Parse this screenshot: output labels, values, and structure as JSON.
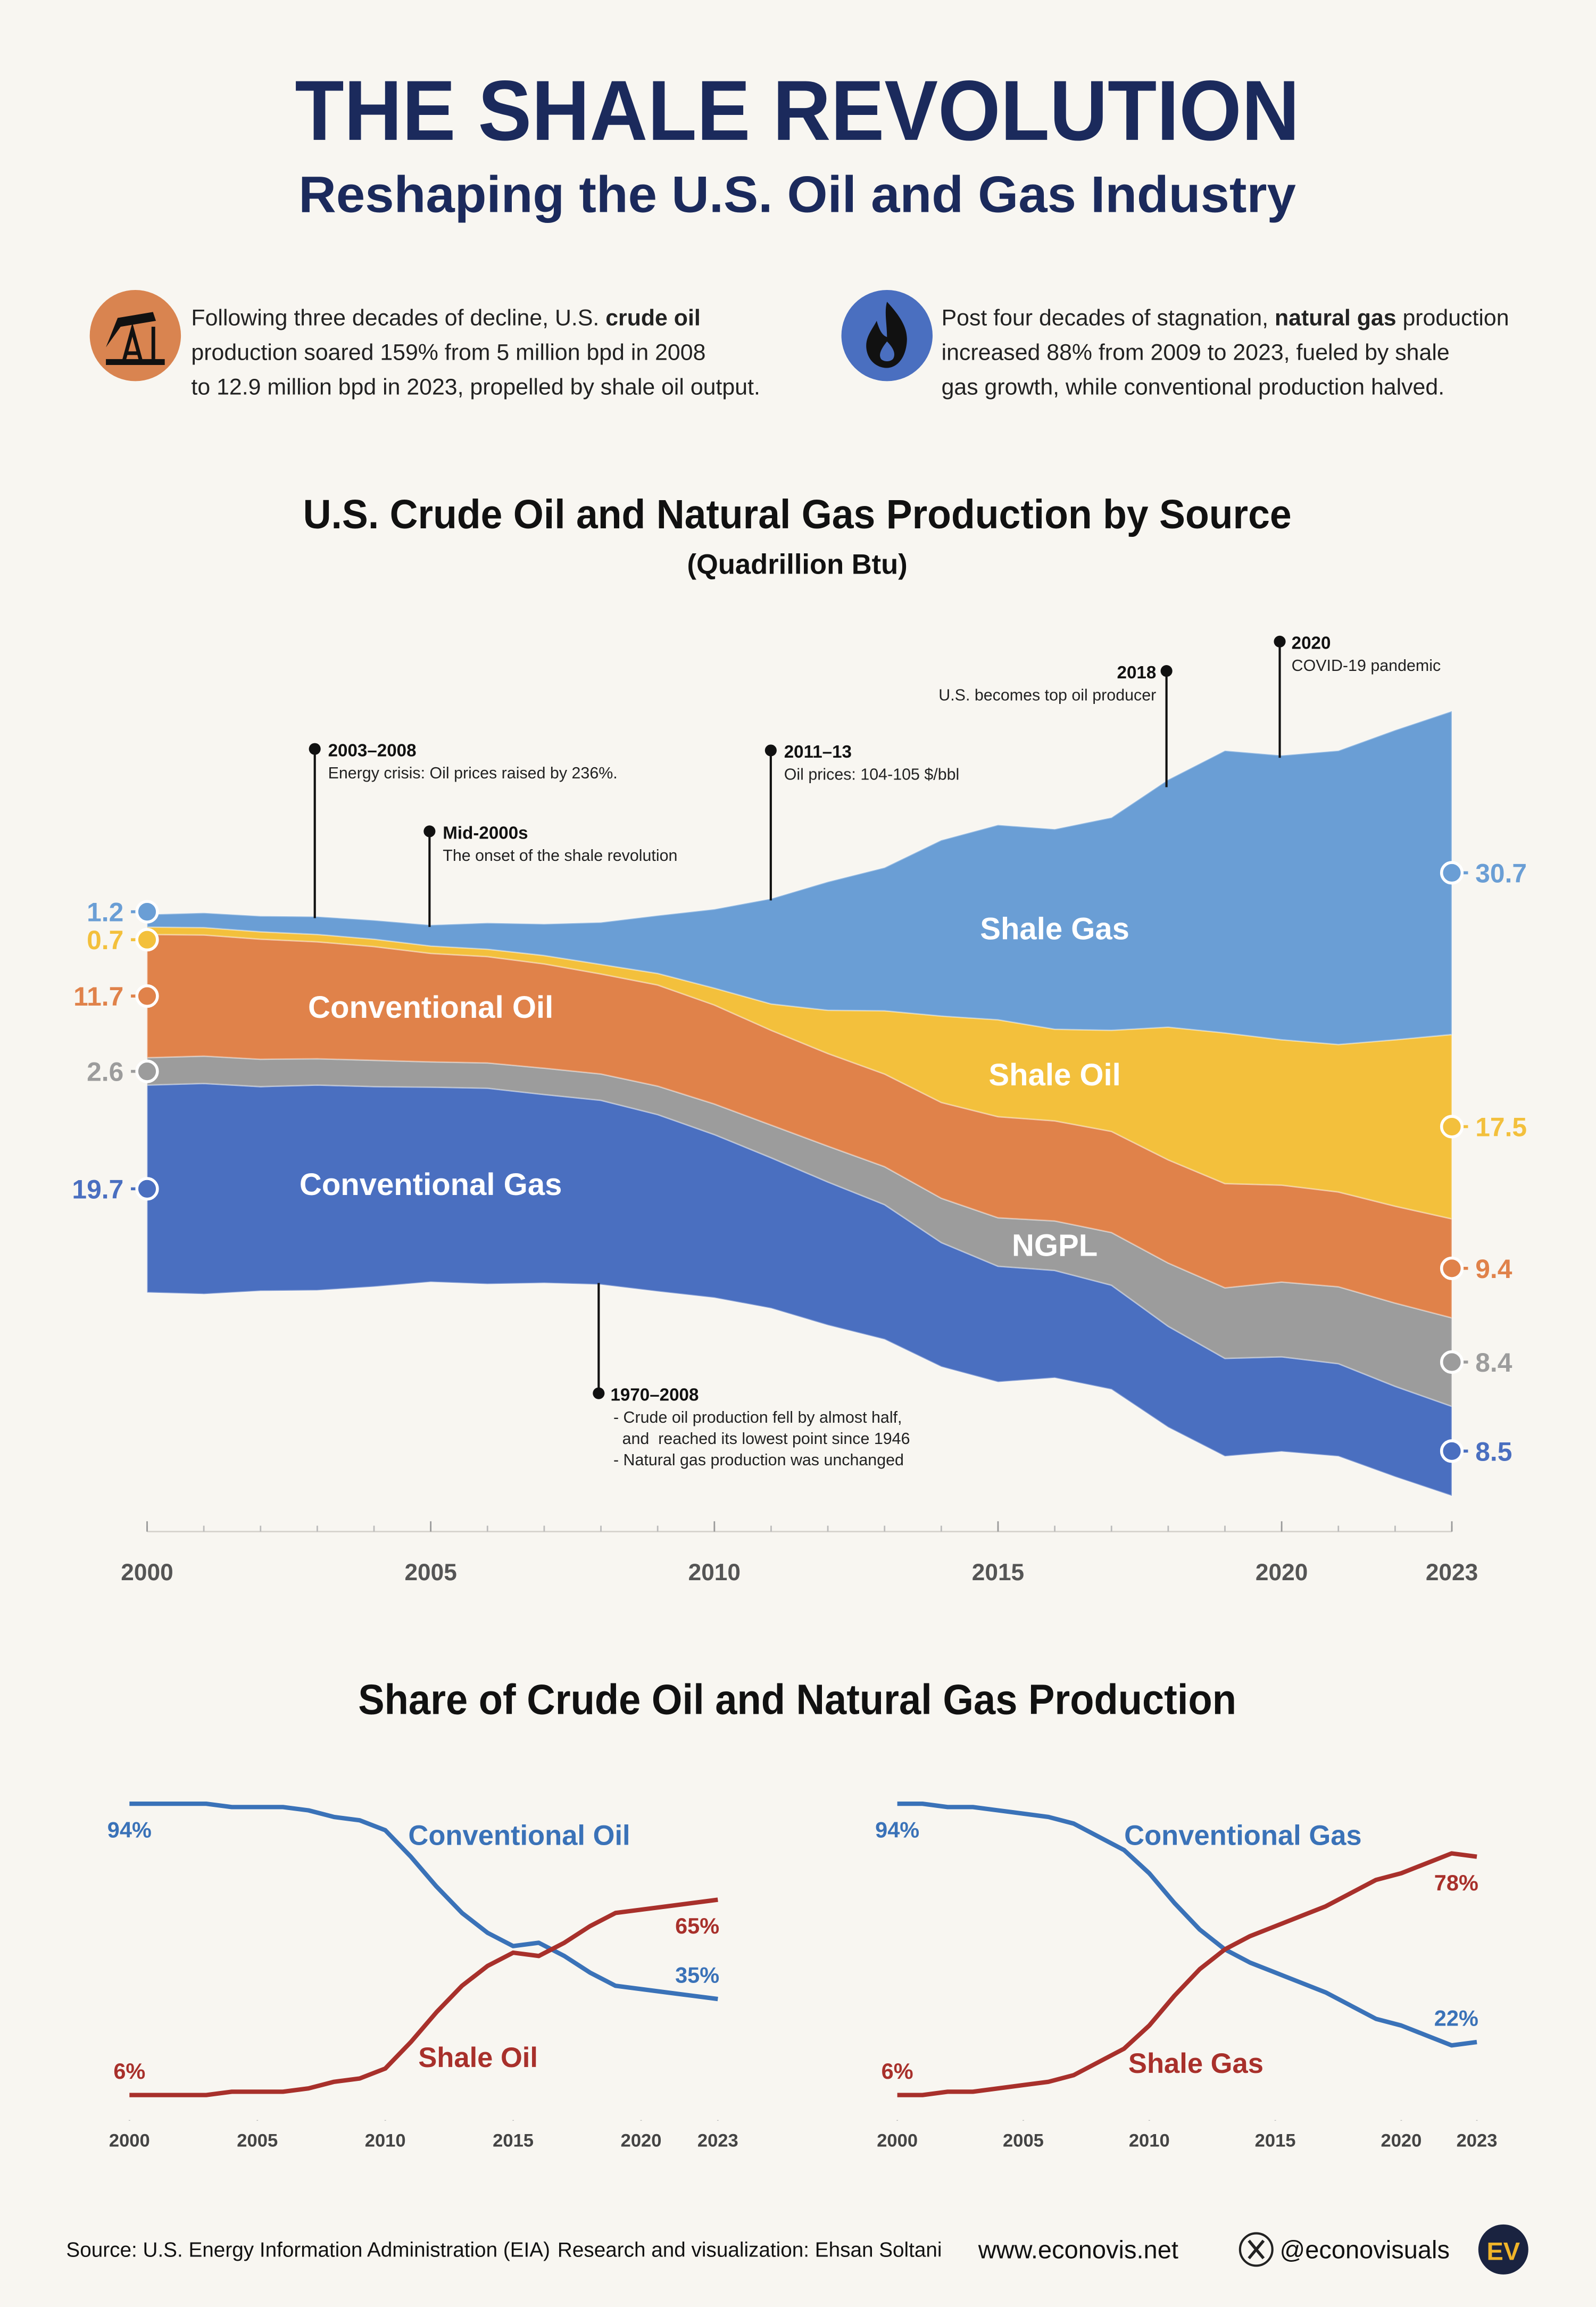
{
  "header": {
    "title": "THE SHALE REVOLUTION",
    "subtitle": "Reshaping the U.S. Oil and Gas Industry"
  },
  "intro": [
    {
      "lines": [
        [
          {
            "text": "Following three decades of decline, U.S. "
          },
          {
            "text": "crude oil",
            "bold": true
          }
        ],
        [
          {
            "text": "production soared 159% from 5 million bpd in 2008"
          }
        ],
        [
          {
            "text": "to 12.9 million bpd in 2023, propelled by shale oil output."
          }
        ]
      ]
    },
    {
      "lines": [
        [
          {
            "text": "Post four decades of stagnation, "
          },
          {
            "text": "natural gas",
            "bold": true
          },
          {
            "text": " production"
          }
        ],
        [
          {
            "text": "increased 88% from 2009 to 2023, fueled by shale"
          }
        ],
        [
          {
            "text": "gas growth, while conventional production halved."
          }
        ]
      ]
    }
  ],
  "chart_data": [
    {
      "type": "area",
      "title": "U.S. Crude Oil and Natural Gas Production by Source",
      "subtitle": "(Quadrillion Btu)",
      "x": [
        2000,
        2001,
        2002,
        2003,
        2004,
        2005,
        2006,
        2007,
        2008,
        2009,
        2010,
        2011,
        2012,
        2013,
        2014,
        2015,
        2016,
        2017,
        2018,
        2019,
        2020,
        2021,
        2022,
        2023
      ],
      "xlim": [
        2000,
        2023
      ],
      "xticks": [
        2000,
        2005,
        2010,
        2015,
        2020,
        2023
      ],
      "series": [
        {
          "name": "Conventional Gas",
          "color": "#4a6fc0",
          "values": [
            19.7,
            20.0,
            19.4,
            19.5,
            19.0,
            18.5,
            18.6,
            17.9,
            17.5,
            16.8,
            15.5,
            14.3,
            13.6,
            12.8,
            11.8,
            11.0,
            10.2,
            9.9,
            9.6,
            9.3,
            9.0,
            8.8,
            8.6,
            8.5
          ]
        },
        {
          "name": "NGPL",
          "color": "#9c9c9c",
          "values": [
            2.6,
            2.6,
            2.6,
            2.5,
            2.5,
            2.4,
            2.4,
            2.5,
            2.5,
            2.7,
            2.9,
            3.1,
            3.4,
            3.6,
            4.2,
            4.6,
            4.7,
            5.0,
            6.0,
            6.7,
            7.1,
            7.3,
            7.9,
            8.4
          ]
        },
        {
          "name": "Conventional Oil",
          "color": "#e0824a",
          "values": [
            11.7,
            11.5,
            11.4,
            11.1,
            10.8,
            10.3,
            10.1,
            9.9,
            9.5,
            9.6,
            9.4,
            9.0,
            8.8,
            8.8,
            9.1,
            9.6,
            9.5,
            9.6,
            9.8,
            9.9,
            9.2,
            9.0,
            9.2,
            9.4
          ]
        },
        {
          "name": "Shale Oil",
          "color": "#f3c03c",
          "values": [
            0.7,
            0.7,
            0.7,
            0.7,
            0.7,
            0.7,
            0.7,
            0.8,
            0.9,
            1.1,
            1.6,
            2.5,
            4.1,
            6.0,
            8.2,
            9.2,
            8.7,
            9.6,
            12.6,
            14.3,
            13.8,
            14.0,
            15.8,
            17.5
          ]
        },
        {
          "name": "Shale Gas",
          "color": "#6a9ed5",
          "values": [
            1.2,
            1.4,
            1.5,
            1.7,
            1.8,
            2.0,
            2.5,
            3.0,
            4.0,
            5.5,
            7.5,
            10.0,
            12.2,
            13.6,
            16.7,
            18.5,
            19.0,
            20.2,
            23.5,
            26.8,
            27.0,
            27.9,
            29.4,
            30.7
          ]
        }
      ],
      "annotations": [
        {
          "title": "2003–2008",
          "text": [
            "Energy crisis: Oil prices raised by 236%."
          ]
        },
        {
          "title": "Mid-2000s",
          "text": [
            "The onset of the shale revolution"
          ]
        },
        {
          "title": "2011–13",
          "text": [
            "Oil prices: 104-105 $/bbl"
          ]
        },
        {
          "title": "2018",
          "text": [
            "U.S. becomes top oil producer"
          ]
        },
        {
          "title": "2020",
          "text": [
            "COVID-19 pandemic"
          ]
        },
        {
          "title": "1970–2008",
          "text": [
            "- Crude oil production fell by almost half,",
            "and  reached its lowest point since 1946",
            "- Natural gas production was unchanged"
          ]
        }
      ]
    },
    {
      "type": "line",
      "x": [
        2000,
        2001,
        2002,
        2003,
        2004,
        2005,
        2006,
        2007,
        2008,
        2009,
        2010,
        2011,
        2012,
        2013,
        2014,
        2015,
        2016,
        2017,
        2018,
        2019,
        2020,
        2021,
        2022,
        2023
      ],
      "xlim": [
        2000,
        2023
      ],
      "xticks": [
        2000,
        2005,
        2010,
        2015,
        2020,
        2023
      ],
      "ylim": [
        0,
        100
      ],
      "series": [
        {
          "name": "Conventional Oil",
          "color": "#3a72b8",
          "values": [
            94,
            94,
            94,
            94,
            93,
            93,
            93,
            92,
            90,
            89,
            86,
            78,
            69,
            61,
            55,
            51,
            52,
            48,
            43,
            39,
            38,
            37,
            36,
            35
          ],
          "value_labels": [
            "94%",
            null,
            null,
            null,
            null,
            null,
            null,
            null,
            null,
            null,
            null,
            null,
            null,
            null,
            null,
            null,
            null,
            null,
            null,
            null,
            null,
            null,
            null,
            "35%"
          ]
        },
        {
          "name": "Shale Oil",
          "color": "#a8302b",
          "values": [
            6,
            6,
            6,
            6,
            7,
            7,
            7,
            8,
            10,
            11,
            14,
            22,
            31,
            39,
            45,
            49,
            48,
            52,
            57,
            61,
            62,
            63,
            64,
            65
          ],
          "value_labels": [
            "6%",
            null,
            null,
            null,
            null,
            null,
            null,
            null,
            null,
            null,
            null,
            null,
            null,
            null,
            null,
            null,
            null,
            null,
            null,
            null,
            null,
            null,
            null,
            "65%"
          ]
        }
      ]
    },
    {
      "type": "line",
      "x": [
        2000,
        2001,
        2002,
        2003,
        2004,
        2005,
        2006,
        2007,
        2008,
        2009,
        2010,
        2011,
        2012,
        2013,
        2014,
        2015,
        2016,
        2017,
        2018,
        2019,
        2020,
        2021,
        2022,
        2023
      ],
      "xlim": [
        2000,
        2023
      ],
      "xticks": [
        2000,
        2005,
        2010,
        2015,
        2020,
        2023
      ],
      "ylim": [
        0,
        100
      ],
      "series": [
        {
          "name": "Conventional Gas",
          "color": "#3a72b8",
          "values": [
            94,
            94,
            93,
            93,
            92,
            91,
            90,
            88,
            84,
            80,
            73,
            64,
            56,
            50,
            46,
            43,
            40,
            37,
            33,
            29,
            27,
            24,
            21,
            22
          ],
          "value_labels": [
            "94%",
            null,
            null,
            null,
            null,
            null,
            null,
            null,
            null,
            null,
            null,
            null,
            null,
            null,
            null,
            null,
            null,
            null,
            null,
            null,
            null,
            null,
            null,
            "22%"
          ]
        },
        {
          "name": "Shale Gas",
          "color": "#a8302b",
          "values": [
            6,
            6,
            7,
            7,
            8,
            9,
            10,
            12,
            16,
            20,
            27,
            36,
            44,
            50,
            54,
            57,
            60,
            63,
            67,
            71,
            73,
            76,
            79,
            78
          ],
          "value_labels": [
            "6%",
            null,
            null,
            null,
            null,
            null,
            null,
            null,
            null,
            null,
            null,
            null,
            null,
            null,
            null,
            null,
            null,
            null,
            null,
            null,
            null,
            null,
            null,
            "78%"
          ]
        }
      ]
    }
  ],
  "share_title": "Share of Crude Oil and Natural Gas Production",
  "footer": {
    "source": "Source: U.S. Energy Information Administration (EIA)",
    "credit": "Research and visualization: Ehsan Soltani",
    "website": "www.econovis.net",
    "handle": "@econovisuals",
    "logo": "EV"
  }
}
